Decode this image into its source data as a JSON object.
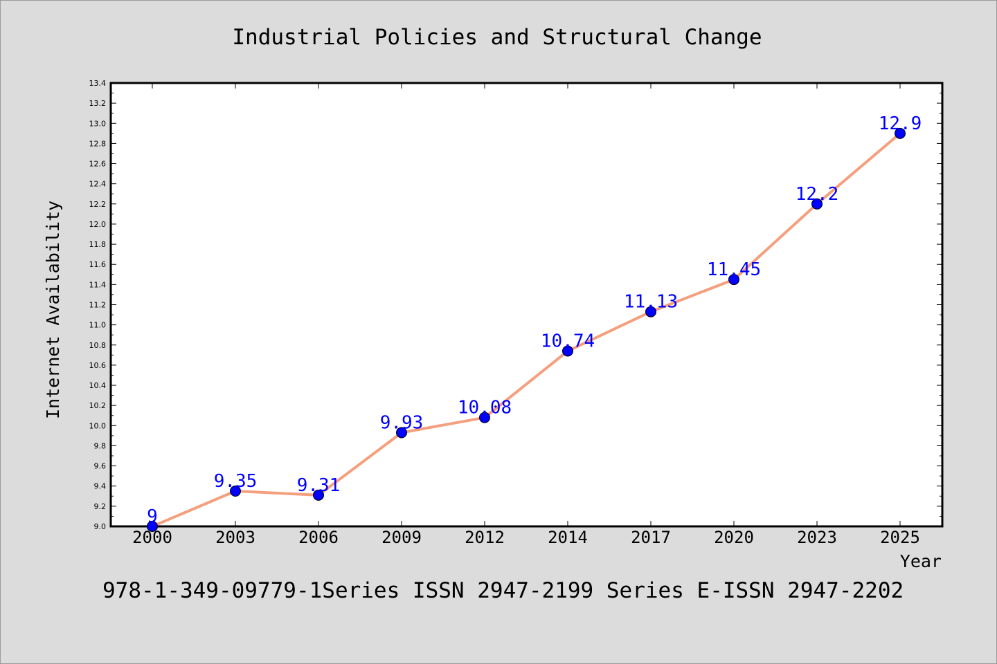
{
  "chart_data": {
    "type": "line",
    "title": "Industrial Policies and Structural Change",
    "xlabel": "Year",
    "ylabel": "Internet Availability",
    "categories": [
      "2000",
      "2003",
      "2006",
      "2009",
      "2012",
      "2014",
      "2017",
      "2020",
      "2023",
      "2025"
    ],
    "series": [
      {
        "values": [
          9,
          9.35,
          9.31,
          9.93,
          10.08,
          10.74,
          11.13,
          11.45,
          12.2,
          12.9
        ],
        "labels": [
          "9",
          "9.35",
          "9.31",
          "9.93",
          "10.08",
          "10.74",
          "11.13",
          "11.45",
          "12.2",
          "12.9"
        ],
        "line_color": "#f4a07e",
        "marker_color": "#0000ff"
      }
    ],
    "ylim": [
      9.0,
      13.4
    ],
    "yticks": [
      "9.0",
      "9.2",
      "9.4",
      "9.6",
      "9.8",
      "10.0",
      "10.2",
      "10.4",
      "10.6",
      "10.8",
      "11.0",
      "11.2",
      "11.4",
      "11.6",
      "11.8",
      "12.0",
      "12.2",
      "12.4",
      "12.6",
      "12.8",
      "13.0",
      "13.2",
      "13.4"
    ],
    "grid": false,
    "legend": "none"
  },
  "footer_text": "978-1-349-09779-1Series ISSN 2947-2199 Series E-ISSN 2947-2202"
}
